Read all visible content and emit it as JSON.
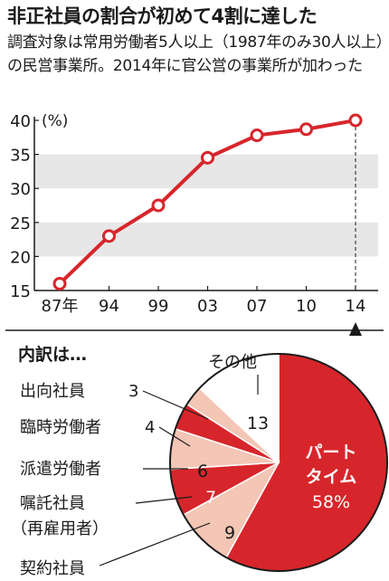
{
  "title": "非正社員の割合が初めて4割に達した",
  "note": "調査対象は常用労働者5人以上（1987年のみ30人以上）の民営事業所。2014年に官公営の事業所が加わった",
  "chart_data": [
    {
      "type": "line",
      "unit": "(%)",
      "x": [
        "87年",
        "94",
        "99",
        "03",
        "07",
        "10",
        "14"
      ],
      "values": [
        16,
        23,
        27.5,
        34.5,
        37.8,
        38.7,
        40
      ],
      "ylim": [
        15,
        40
      ],
      "yticks": [
        "15",
        "20",
        "25",
        "30",
        "35",
        "40"
      ],
      "grid": "alternating horizontal bands",
      "color": "#d7262b"
    },
    {
      "type": "pie",
      "title": "内訳は…",
      "slices": [
        {
          "name": "パートタイム",
          "line1": "パート",
          "line2": "タイム",
          "value": 58,
          "value_label": "58%",
          "color": "#d7262b"
        },
        {
          "name": "契約社員",
          "value": 9,
          "value_label": "9",
          "color": "#f3c6b5"
        },
        {
          "name": "嘱託社員",
          "sub": "（再雇用者）",
          "value": 7,
          "value_label": "7",
          "color": "#d7262b"
        },
        {
          "name": "派遣労働者",
          "value": 6,
          "value_label": "6",
          "color": "#f3c6b5"
        },
        {
          "name": "臨時労働者",
          "value": 4,
          "value_label": "4",
          "color": "#d7262b"
        },
        {
          "name": "出向社員",
          "value": 3,
          "value_label": "3",
          "color": "#f3c6b5"
        },
        {
          "name": "その他",
          "value": 13,
          "value_label": "13",
          "color": "#ffffff"
        }
      ]
    }
  ]
}
